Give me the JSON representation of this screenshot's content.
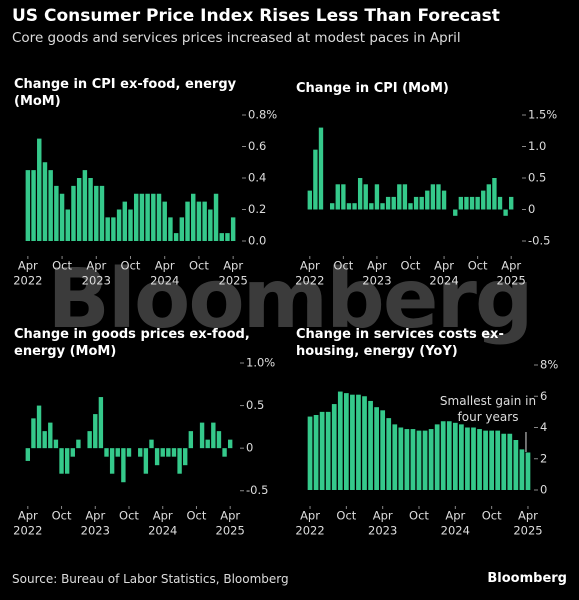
{
  "title": "US Consumer Price Index Rises Less Than Forecast",
  "subtitle": "Core goods and services prices increased at modest paces in April",
  "watermark": "Bloomberg",
  "source": "Source: Bureau of Labor Statistics, Bloomberg",
  "logo": "Bloomberg",
  "chart_data": [
    {
      "type": "bar",
      "title": "Change in CPI ex-food, energy (MoM)",
      "color": "#35c98b",
      "categories": [
        "Apr",
        null,
        null,
        null,
        null,
        null,
        "Oct",
        null,
        null,
        null,
        null,
        null,
        "Apr",
        null,
        null,
        null,
        null,
        null,
        "Oct",
        null,
        null,
        null,
        null,
        null,
        "Apr",
        null,
        null,
        null,
        null,
        null,
        "Oct",
        null,
        null,
        null,
        null,
        null,
        "Apr"
      ],
      "years": [
        "2022",
        "2023",
        "2024",
        "2025"
      ],
      "values": [
        0.45,
        0.45,
        0.65,
        0.5,
        0.45,
        0.35,
        0.3,
        0.2,
        0.35,
        0.4,
        0.45,
        0.4,
        0.35,
        0.35,
        0.15,
        0.15,
        0.2,
        0.25,
        0.2,
        0.3,
        0.3,
        0.3,
        0.3,
        0.3,
        0.25,
        0.15,
        0.05,
        0.15,
        0.25,
        0.3,
        0.25,
        0.25,
        0.2,
        0.3,
        0.05,
        0.05,
        0.15
      ],
      "ylim": [
        0,
        0.8
      ],
      "yticks": [
        {
          "value": 0,
          "label": "0.0"
        },
        0.2,
        0.4,
        0.6,
        {
          "value": 0.8,
          "label": "0.8%"
        }
      ]
    },
    {
      "type": "bar",
      "title": "Change in CPI (MoM)",
      "color": "#35c98b",
      "categories": [
        "Apr",
        null,
        null,
        null,
        null,
        null,
        "Oct",
        null,
        null,
        null,
        null,
        null,
        "Apr",
        null,
        null,
        null,
        null,
        null,
        "Oct",
        null,
        null,
        null,
        null,
        null,
        "Apr",
        null,
        null,
        null,
        null,
        null,
        "Oct",
        null,
        null,
        null,
        null,
        null,
        "Apr"
      ],
      "years": [
        "2022",
        "2023",
        "2024",
        "2025"
      ],
      "values": [
        0.3,
        0.95,
        1.3,
        0.0,
        0.1,
        0.4,
        0.4,
        0.1,
        0.1,
        0.5,
        0.4,
        0.1,
        0.4,
        0.1,
        0.2,
        0.2,
        0.4,
        0.4,
        0.1,
        0.2,
        0.2,
        0.3,
        0.4,
        0.4,
        0.3,
        0.0,
        -0.1,
        0.2,
        0.2,
        0.2,
        0.2,
        0.3,
        0.4,
        0.5,
        0.2,
        -0.1,
        0.2
      ],
      "ylim": [
        -0.5,
        1.5
      ],
      "yticks": [
        -0.5,
        0,
        0.5,
        {
          "value": 1,
          "label": "1.0"
        },
        {
          "value": 1.5,
          "label": "1.5%"
        }
      ]
    },
    {
      "type": "bar",
      "title": "Change in goods prices ex-food, energy (MoM)",
      "color": "#35c98b",
      "categories": [
        "Apr",
        null,
        null,
        null,
        null,
        null,
        "Oct",
        null,
        null,
        null,
        null,
        null,
        "Apr",
        null,
        null,
        null,
        null,
        null,
        "Oct",
        null,
        null,
        null,
        null,
        null,
        "Apr",
        null,
        null,
        null,
        null,
        null,
        "Oct",
        null,
        null,
        null,
        null,
        null,
        "Apr"
      ],
      "years": [
        "2022",
        "2023",
        "2024",
        "2025"
      ],
      "values": [
        -0.15,
        0.35,
        0.5,
        0.2,
        0.3,
        0.1,
        -0.3,
        -0.3,
        -0.1,
        0.1,
        0.0,
        0.2,
        0.4,
        0.6,
        -0.1,
        -0.3,
        -0.1,
        -0.4,
        -0.1,
        0.0,
        -0.1,
        -0.3,
        0.1,
        -0.2,
        -0.1,
        -0.1,
        -0.1,
        -0.3,
        -0.2,
        0.2,
        0.0,
        0.3,
        0.1,
        0.3,
        0.2,
        -0.1,
        0.1
      ],
      "ylim": [
        -0.55,
        1
      ],
      "yticks": [
        -0.5,
        0,
        0.5,
        {
          "value": 1,
          "label": "1.0%"
        }
      ]
    },
    {
      "type": "bar",
      "title": "Change in services costs ex-housing, energy (YoY)",
      "color": "#35c98b",
      "categories": [
        "Apr",
        null,
        null,
        null,
        null,
        null,
        "Oct",
        null,
        null,
        null,
        null,
        null,
        "Apr",
        null,
        null,
        null,
        null,
        null,
        "Oct",
        null,
        null,
        null,
        null,
        null,
        "Apr",
        null,
        null,
        null,
        null,
        null,
        "Oct",
        null,
        null,
        null,
        null,
        null,
        "Apr"
      ],
      "years": [
        "2022",
        "2023",
        "2024",
        "2025"
      ],
      "values": [
        4.7,
        4.8,
        5.0,
        5.0,
        5.5,
        6.3,
        6.2,
        6.1,
        6.1,
        6.0,
        5.7,
        5.3,
        5.1,
        4.6,
        4.2,
        4.0,
        3.9,
        3.9,
        3.8,
        3.8,
        3.9,
        4.2,
        4.4,
        4.4,
        4.3,
        4.2,
        4.0,
        4.0,
        3.9,
        3.8,
        3.8,
        3.8,
        3.6,
        3.6,
        3.2,
        2.6,
        2.4
      ],
      "annotation": "Smallest gain in four years",
      "ylim": [
        0,
        8
      ],
      "yticks": [
        0,
        2,
        4,
        6,
        {
          "value": 8,
          "label": "8%"
        }
      ]
    }
  ]
}
